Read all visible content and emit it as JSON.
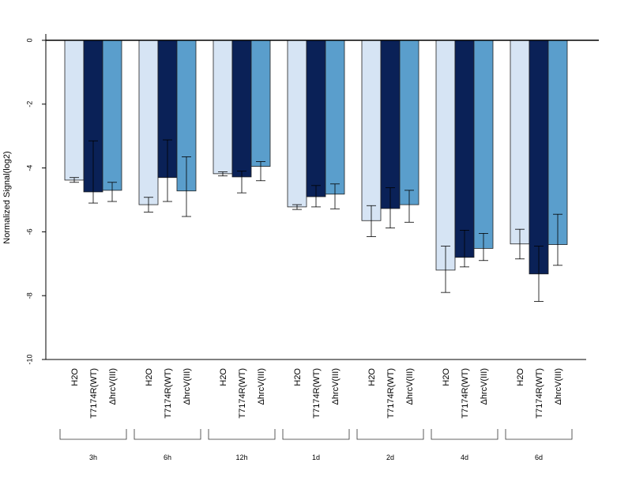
{
  "chart_data": {
    "type": "bar",
    "title": "",
    "ylabel": "Normalized Signal(log2)",
    "ylim": [
      -10,
      0
    ],
    "yticks": [
      0,
      -2,
      -4,
      -6,
      -8,
      -10
    ],
    "grid": false,
    "legend": "none",
    "bar_labels": [
      "H2O",
      "T7174R(WT)",
      "ΔhrcV(III)"
    ],
    "groups": [
      "3h",
      "6h",
      "12h",
      "1d",
      "2d",
      "4d",
      "6d"
    ],
    "series": [
      {
        "color": "#d6e4f4",
        "values": [
          -4.38,
          -5.15,
          -4.18,
          -5.22,
          -5.65,
          -7.2,
          -6.38
        ],
        "err_low": [
          -4.45,
          -5.38,
          -4.25,
          -5.3,
          -6.15,
          -7.9,
          -6.85
        ],
        "err_high": [
          -4.3,
          -4.92,
          -4.12,
          -5.15,
          -5.18,
          -6.45,
          -5.92
        ]
      },
      {
        "color": "#0a2157",
        "values": [
          -4.75,
          -4.3,
          -4.28,
          -4.9,
          -5.27,
          -6.8,
          -7.32
        ],
        "err_low": [
          -5.1,
          -5.05,
          -4.78,
          -5.22,
          -5.88,
          -7.1,
          -8.18
        ],
        "err_high": [
          -3.15,
          -3.12,
          -4.1,
          -4.55,
          -4.62,
          -5.95,
          -6.45
        ]
      },
      {
        "color": "#5a9ecc",
        "values": [
          -4.7,
          -4.72,
          -3.95,
          -4.82,
          -5.15,
          -6.52,
          -6.4
        ],
        "err_low": [
          -5.05,
          -5.52,
          -4.4,
          -5.28,
          -5.7,
          -6.9,
          -7.05
        ],
        "err_high": [
          -4.45,
          -3.65,
          -3.8,
          -4.5,
          -4.7,
          -6.05,
          -5.45
        ]
      }
    ]
  }
}
